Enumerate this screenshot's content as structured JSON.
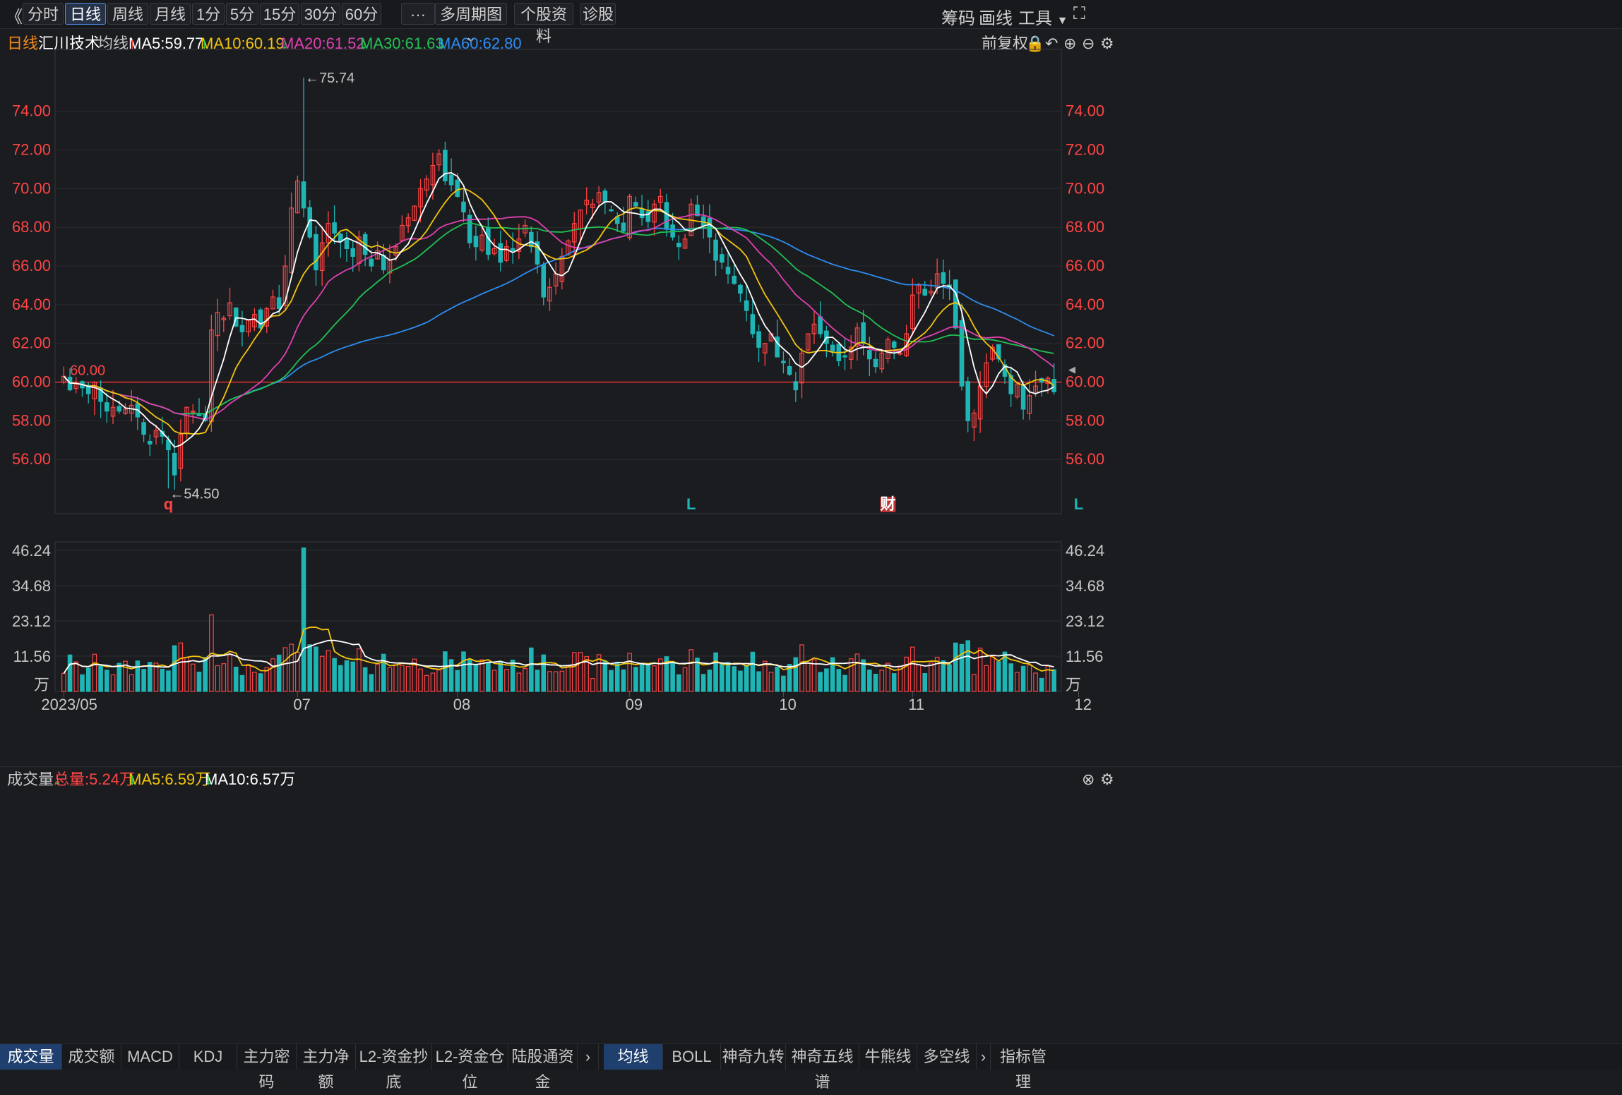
{
  "toolbar": {
    "back_glyph": "《",
    "periods": [
      "分时",
      "日线",
      "周线",
      "月线",
      "1分",
      "5分",
      "15分",
      "30分",
      "60分"
    ],
    "active_period": "日线",
    "more_label": "···",
    "multi_period_label": "多周期图",
    "profile_label": "个股资料",
    "diagnose_label": "诊股",
    "right_items": [
      "筹码",
      "画线",
      "工具"
    ],
    "fullscreen_glyph": "⛶"
  },
  "header": {
    "period": "日线",
    "stock_name": "汇川技术",
    "indicator": "均线",
    "ma5": "MA5:59.77",
    "ma10": "MA10:60.19",
    "ma20": "MA20:61.52",
    "ma30": "MA30:61.63",
    "ma60": "MA60:62.80",
    "adjust_label": "前复权"
  },
  "volume_header": {
    "title": "成交量",
    "total": "总量:5.24万",
    "ma5": "MA5:6.59万",
    "ma10": "MA10:6.57万"
  },
  "bottom_tabs_left": [
    "成交量",
    "成交额",
    "MACD",
    "KDJ",
    "主力密码",
    "主力净额",
    "L2-资金抄底",
    "L2-资金仓位",
    "陆股通资金"
  ],
  "bottom_tabs_right": [
    "均线",
    "BOLL",
    "神奇九转",
    "神奇五线谱",
    "牛熊线",
    "多空线"
  ],
  "bottom_right_label": "指标管理",
  "colors": {
    "up": "#ff4444",
    "down": "#1fb5b5",
    "ma5": "#ffffff",
    "ma10": "#f2c40c",
    "ma20": "#e040b0",
    "ma30": "#21c155",
    "ma60": "#2d8cf0",
    "axis": "#ff4444",
    "grid": "#2a2b30"
  },
  "chart_data": {
    "type": "candlestick",
    "price_ticks": [
      "74.00",
      "72.00",
      "70.00",
      "68.00",
      "66.00",
      "64.00",
      "62.00",
      "60.00",
      "58.00",
      "56.00"
    ],
    "price_range": [
      53.2,
      77.2
    ],
    "volume_ticks": [
      "46.24",
      "34.68",
      "23.12",
      "11.56"
    ],
    "volume_unit": "万",
    "volume_range": [
      0,
      49
    ],
    "x_labels": [
      {
        "label": "2023/05",
        "index": 0
      },
      {
        "label": "07",
        "index": 38
      },
      {
        "label": "08",
        "index": 64
      },
      {
        "label": "09",
        "index": 92
      },
      {
        "label": "10",
        "index": 117
      },
      {
        "label": "11",
        "index": 138
      },
      {
        "label": "12",
        "index": 165
      }
    ],
    "annotations": {
      "high": {
        "label": "←75.74",
        "index": 39,
        "value": 75.74
      },
      "low": {
        "label": "←54.50",
        "index": 17,
        "value": 54.5
      },
      "reference": {
        "label": "60.00",
        "value": 60.0
      },
      "markers": [
        {
          "label": "q",
          "index": 17,
          "color": "#ff4444"
        },
        {
          "label": "L",
          "index": 102,
          "color": "#1fb5b5"
        },
        {
          "label": "财",
          "index": 134,
          "color": "#ffffff",
          "bg": "#b33"
        },
        {
          "label": "L",
          "index": 165,
          "color": "#1fb5b5"
        }
      ]
    },
    "closes": [
      60.3,
      59.6,
      59.9,
      59.7,
      59.4,
      60.0,
      59.0,
      58.5,
      58.7,
      58.5,
      58.6,
      58.8,
      58.2,
      57.3,
      56.8,
      57.5,
      57.2,
      56.5,
      55.2,
      57.3,
      58.7,
      58.5,
      58.3,
      58.0,
      62.7,
      63.6,
      63.3,
      64.1,
      62.9,
      62.6,
      63.2,
      63.5,
      62.8,
      63.8,
      64.4,
      63.8,
      66.0,
      69.0,
      70.4,
      69.0,
      67.5,
      65.8,
      67.2,
      68.2,
      67.7,
      67.3,
      66.9,
      66.5,
      67.5,
      66.6,
      66.0,
      66.8,
      65.8,
      66.3,
      67.0,
      68.1,
      68.5,
      69.1,
      70.0,
      70.5,
      71.2,
      71.8,
      70.4,
      70.2,
      69.6,
      68.8,
      67.2,
      67.0,
      67.6,
      66.6,
      66.9,
      66.2,
      67.0,
      66.8,
      67.4,
      68.1,
      67.0,
      66.1,
      64.4,
      64.9,
      65.6,
      66.5,
      67.3,
      68.2,
      68.9,
      69.4,
      69.2,
      69.8,
      69.3,
      68.9,
      68.2,
      67.8,
      69.6,
      69.1,
      68.5,
      68.3,
      69.2,
      69.6,
      67.9,
      67.5,
      67.0,
      67.4,
      69.2,
      68.6,
      68.1,
      67.5,
      66.3,
      66.2,
      65.6,
      65.1,
      64.6,
      63.7,
      62.5,
      61.8,
      62.0,
      62.5,
      61.3,
      61.0,
      60.4,
      59.6,
      61.5,
      62.5,
      63.0,
      62.5,
      62.0,
      61.6,
      61.1,
      61.3,
      61.8,
      62.8,
      62.0,
      61.2,
      60.8,
      61.5,
      62.2,
      61.8,
      61.5,
      62.5,
      64.5,
      65.0,
      64.5,
      64.7,
      65.6,
      65.1,
      64.9,
      62.8,
      59.8,
      58.0,
      58.4,
      59.8,
      61.0,
      61.8,
      61.2,
      60.3,
      59.4,
      59.9,
      58.6,
      59.3,
      59.8,
      60.0,
      60.2,
      59.5
    ]
  }
}
